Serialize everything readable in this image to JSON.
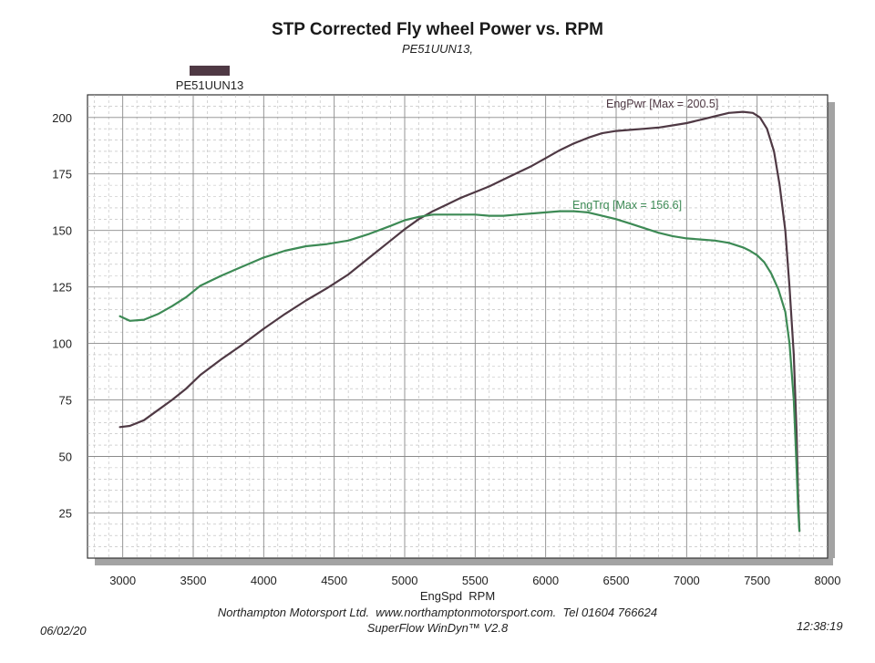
{
  "chart_data": {
    "type": "line",
    "title": "STP Corrected Fly wheel Power vs. RPM",
    "subtitle": "PE51UUN13,",
    "legend": {
      "label": "PE51UUN13",
      "color": "#4f3944",
      "position": "top-left"
    },
    "xlabel": "EngSpd  RPM",
    "ylabel": "",
    "xlim": [
      2750,
      8000
    ],
    "ylim": [
      5,
      210
    ],
    "x_ticks": [
      3000,
      3500,
      4000,
      4500,
      5000,
      5500,
      6000,
      6500,
      7000,
      7500,
      8000
    ],
    "y_ticks": [
      25,
      50,
      75,
      100,
      125,
      150,
      175,
      200
    ],
    "grid": true,
    "series": [
      {
        "name": "EngPwr",
        "annotation": "EngPwr [Max = 200.5]",
        "color": "#4f3944",
        "x": [
          2980,
          3050,
          3150,
          3250,
          3350,
          3450,
          3550,
          3700,
          3850,
          4000,
          4150,
          4300,
          4450,
          4600,
          4750,
          4900,
          5000,
          5100,
          5200,
          5300,
          5400,
          5500,
          5600,
          5700,
          5800,
          5900,
          6000,
          6100,
          6200,
          6300,
          6400,
          6500,
          6600,
          6700,
          6800,
          6900,
          7000,
          7100,
          7200,
          7300,
          7400,
          7470,
          7520,
          7570,
          7620,
          7660,
          7700,
          7730,
          7760,
          7780,
          7790,
          7800
        ],
        "y": [
          63,
          63.5,
          66,
          70.5,
          75,
          80,
          86,
          93,
          99.5,
          106.5,
          113,
          119,
          124.5,
          130.5,
          138,
          145.5,
          150.5,
          155,
          158.5,
          161.5,
          164.5,
          167,
          169.5,
          172.5,
          175.5,
          178.5,
          182,
          185.5,
          188.5,
          191,
          193,
          194,
          194.5,
          195,
          195.5,
          196.5,
          197.5,
          199,
          200.5,
          202,
          202.5,
          202,
          200,
          195,
          185,
          170,
          150,
          125,
          95,
          60,
          35,
          17
        ]
      },
      {
        "name": "EngTrq",
        "annotation": "EngTrq [Max = 156.6]",
        "color": "#3d8a55",
        "x": [
          2980,
          3050,
          3150,
          3250,
          3350,
          3450,
          3550,
          3700,
          3850,
          4000,
          4150,
          4300,
          4450,
          4600,
          4750,
          4900,
          5000,
          5100,
          5200,
          5300,
          5400,
          5500,
          5600,
          5700,
          5800,
          5900,
          6000,
          6100,
          6200,
          6300,
          6400,
          6500,
          6600,
          6700,
          6800,
          6900,
          7000,
          7100,
          7200,
          7300,
          7400,
          7450,
          7500,
          7550,
          7600,
          7650,
          7700,
          7730,
          7760,
          7780,
          7790,
          7800
        ],
        "y": [
          112,
          110,
          110.5,
          113,
          116.5,
          120.5,
          125.5,
          130,
          134,
          138,
          141,
          143,
          144,
          145.5,
          148.5,
          152,
          154.5,
          156,
          157,
          157,
          157,
          157,
          156.5,
          156.5,
          157,
          157.5,
          158,
          158.5,
          158.5,
          158,
          156.5,
          155,
          153,
          151,
          149,
          147.5,
          146.5,
          146,
          145.5,
          144.5,
          142.5,
          141,
          139,
          136,
          131,
          124,
          114,
          100,
          75,
          45,
          28,
          17
        ]
      }
    ]
  },
  "footer": {
    "line1": "Northampton Motorsport Ltd.  www.northamptonmotorsport.com.  Tel 01604 766624",
    "line2": "SuperFlow WinDyn™ V2.8",
    "date": "06/02/20",
    "time": "12:38:19"
  }
}
